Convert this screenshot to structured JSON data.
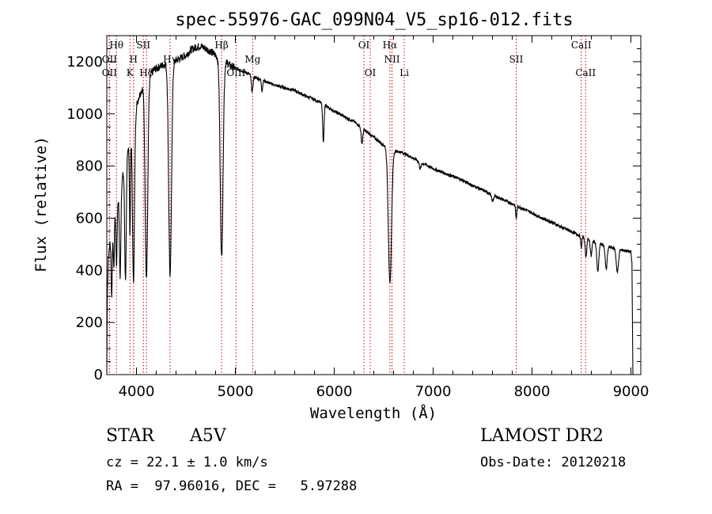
{
  "chart_data": {
    "type": "line",
    "title": "spec-55976-GAC_099N04_V5_sp16-012.fits",
    "xlabel": "Wavelength (Å)",
    "ylabel": "Flux (relative)",
    "xlim": [
      3700,
      9100
    ],
    "ylim": [
      0,
      1300
    ],
    "xticks": [
      4000,
      5000,
      6000,
      7000,
      8000,
      9000
    ],
    "yticks": [
      0,
      200,
      400,
      600,
      800,
      1000,
      1200
    ],
    "grid": false,
    "color": "#000000",
    "line_color": "#cc0000",
    "continuum": [
      [
        3700,
        0
      ],
      [
        3705,
        300
      ],
      [
        3715,
        450
      ],
      [
        3730,
        500
      ],
      [
        3745,
        480
      ],
      [
        3760,
        550
      ],
      [
        3780,
        620
      ],
      [
        3800,
        650
      ],
      [
        3830,
        700
      ],
      [
        3860,
        760
      ],
      [
        3890,
        820
      ],
      [
        3920,
        880
      ],
      [
        3950,
        940
      ],
      [
        3980,
        1000
      ],
      [
        4020,
        1060
      ],
      [
        4060,
        1100
      ],
      [
        4100,
        1130
      ],
      [
        4140,
        1150
      ],
      [
        4180,
        1170
      ],
      [
        4230,
        1180
      ],
      [
        4280,
        1190
      ],
      [
        4340,
        1195
      ],
      [
        4400,
        1205
      ],
      [
        4450,
        1215
      ],
      [
        4500,
        1225
      ],
      [
        4550,
        1245
      ],
      [
        4600,
        1255
      ],
      [
        4650,
        1260
      ],
      [
        4700,
        1250
      ],
      [
        4750,
        1240
      ],
      [
        4800,
        1225
      ],
      [
        4850,
        1210
      ],
      [
        4900,
        1200
      ],
      [
        4950,
        1185
      ],
      [
        5000,
        1175
      ],
      [
        5100,
        1160
      ],
      [
        5200,
        1140
      ],
      [
        5300,
        1125
      ],
      [
        5400,
        1110
      ],
      [
        5500,
        1100
      ],
      [
        5600,
        1090
      ],
      [
        5700,
        1070
      ],
      [
        5800,
        1055
      ],
      [
        5900,
        1035
      ],
      [
        6000,
        1010
      ],
      [
        6100,
        990
      ],
      [
        6200,
        970
      ],
      [
        6300,
        940
      ],
      [
        6400,
        910
      ],
      [
        6500,
        880
      ],
      [
        6600,
        860
      ],
      [
        6700,
        850
      ],
      [
        6800,
        830
      ],
      [
        6900,
        810
      ],
      [
        7000,
        790
      ],
      [
        7100,
        775
      ],
      [
        7200,
        760
      ],
      [
        7300,
        745
      ],
      [
        7400,
        725
      ],
      [
        7500,
        708
      ],
      [
        7600,
        690
      ],
      [
        7700,
        672
      ],
      [
        7800,
        655
      ],
      [
        7900,
        638
      ],
      [
        8000,
        620
      ],
      [
        8100,
        600
      ],
      [
        8200,
        585
      ],
      [
        8300,
        565
      ],
      [
        8400,
        548
      ],
      [
        8500,
        530
      ],
      [
        8600,
        515
      ],
      [
        8700,
        500
      ],
      [
        8800,
        488
      ],
      [
        8900,
        478
      ],
      [
        8950,
        475
      ],
      [
        9000,
        470
      ],
      [
        9010,
        430
      ],
      [
        9020,
        0
      ]
    ],
    "absorption": [
      {
        "center": 3750,
        "depth": 200,
        "width": 5
      },
      {
        "center": 3771,
        "depth": 180,
        "width": 5
      },
      {
        "center": 3798,
        "depth": 230,
        "width": 6
      },
      {
        "center": 3835,
        "depth": 340,
        "width": 7
      },
      {
        "center": 3889,
        "depth": 450,
        "width": 8
      },
      {
        "center": 3934,
        "depth": 380,
        "width": 5
      },
      {
        "center": 3970,
        "depth": 620,
        "width": 10
      },
      {
        "center": 4101,
        "depth": 760,
        "width": 13
      },
      {
        "center": 4340,
        "depth": 820,
        "width": 14
      },
      {
        "center": 4861,
        "depth": 760,
        "width": 14
      },
      {
        "center": 5170,
        "depth": 60,
        "width": 8
      },
      {
        "center": 5270,
        "depth": 40,
        "width": 6
      },
      {
        "center": 5890,
        "depth": 140,
        "width": 7
      },
      {
        "center": 6280,
        "depth": 60,
        "width": 8
      },
      {
        "center": 6563,
        "depth": 520,
        "width": 16
      },
      {
        "center": 6870,
        "depth": 25,
        "width": 10
      },
      {
        "center": 7600,
        "depth": 25,
        "width": 10
      },
      {
        "center": 7840,
        "depth": 50,
        "width": 6
      },
      {
        "center": 8498,
        "depth": 45,
        "width": 6
      },
      {
        "center": 8545,
        "depth": 70,
        "width": 8
      },
      {
        "center": 8598,
        "depth": 60,
        "width": 8
      },
      {
        "center": 8665,
        "depth": 110,
        "width": 10
      },
      {
        "center": 8750,
        "depth": 90,
        "width": 10
      },
      {
        "center": 8863,
        "depth": 90,
        "width": 11
      }
    ],
    "lines": [
      {
        "label": "Hθ",
        "x": 3798,
        "row": 1
      },
      {
        "label": "OII",
        "x": 3727,
        "row": 3
      },
      {
        "label": "OII",
        "x": 3727,
        "row": 2
      },
      {
        "label": "SII",
        "x": 4070,
        "row": 1
      },
      {
        "label": "H",
        "x": 3970,
        "row": 2
      },
      {
        "label": "K",
        "x": 3934,
        "row": 3
      },
      {
        "label": "Hδ",
        "x": 4101,
        "row": 3
      },
      {
        "label": "Hγ",
        "x": 4340,
        "row": 2
      },
      {
        "label": "Hβ",
        "x": 4861,
        "row": 1
      },
      {
        "label": "Mg",
        "x": 5175,
        "row": 2
      },
      {
        "label": "OIII",
        "x": 5007,
        "row": 3
      },
      {
        "label": "OI",
        "x": 6300,
        "row": 1
      },
      {
        "label": "OI",
        "x": 6364,
        "row": 3
      },
      {
        "label": "Hα",
        "x": 6563,
        "row": 1
      },
      {
        "label": "NII",
        "x": 6584,
        "row": 2
      },
      {
        "label": "Li",
        "x": 6708,
        "row": 3
      },
      {
        "label": "SII",
        "x": 7840,
        "row": 2
      },
      {
        "label": "CaII",
        "x": 8498,
        "row": 1
      },
      {
        "label": "CaII",
        "x": 8542,
        "row": 3
      }
    ]
  },
  "info": {
    "object_class": "STAR",
    "subclass": "A5V",
    "survey": "LAMOST DR2",
    "cz": "cz = 22.1 ± 1.0 km/s",
    "obs_date": "Obs-Date: 20120218",
    "coords": "RA =  97.96016, DEC =   5.97288"
  }
}
